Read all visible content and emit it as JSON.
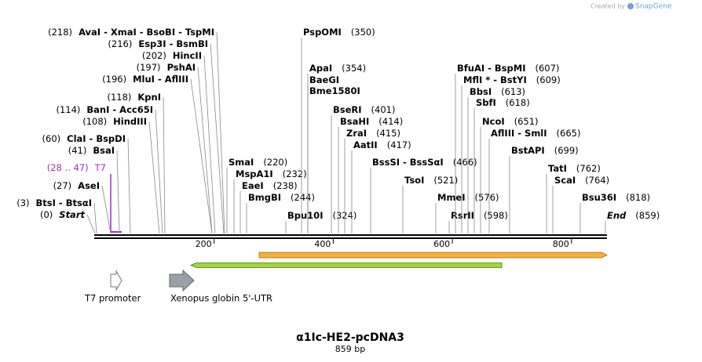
{
  "credit": "Created by",
  "logo": "SnapGene",
  "enzymes_left": [
    {
      "site": "(218)",
      "name": "AvaI - XmaI - BsoBI - TspMI"
    },
    {
      "site": "(216)",
      "name": "Esp3I - BsmBI"
    },
    {
      "site": "(202)",
      "name": "HincII"
    },
    {
      "site": "(197)",
      "name": "PshAI"
    },
    {
      "site": "(196)",
      "name": "MluI - AflIII"
    },
    {
      "site": "(118)",
      "name": "KpnI"
    },
    {
      "site": "(114)",
      "name": "BanI - Acc65I"
    },
    {
      "site": "(108)",
      "name": "HindIII"
    },
    {
      "site": "(60)",
      "name": "ClaI - BspDI"
    },
    {
      "site": "(41)",
      "name": "BsaI"
    },
    {
      "site": "(27)",
      "name": "AseI"
    },
    {
      "site": "(3)",
      "name": "BtsI - BtsαI"
    },
    {
      "site": "(0)",
      "name": "Start"
    }
  ],
  "enzymes_right": [
    {
      "name": "SmaI",
      "site": "(220)"
    },
    {
      "name": "MspA1I",
      "site": "(232)"
    },
    {
      "name": "EaeI",
      "site": "(238)"
    },
    {
      "name": "BmgBI",
      "site": "(244)"
    },
    {
      "name": "Bpu10I",
      "site": "(324)"
    },
    {
      "name": "PspOMI",
      "site": "(350)"
    },
    {
      "name": "ApaI",
      "site": "(354)"
    },
    {
      "name": "BaeGI"
    },
    {
      "name": "Bme1580I"
    },
    {
      "name": "BseRI",
      "site": "(401)"
    },
    {
      "name": "BsaHI",
      "site": "(414)"
    },
    {
      "name": "ZraI",
      "site": "(415)"
    },
    {
      "name": "AatII",
      "site": "(417)"
    },
    {
      "name": "BssSI - BssSαI",
      "site": "(466)"
    },
    {
      "name": "TsoI",
      "site": "(521)"
    },
    {
      "name": "MmeI",
      "site": "(576)"
    },
    {
      "name": "RsrII",
      "site": "(598)"
    },
    {
      "name": "BfuAI - BspMI",
      "site": "(607)"
    },
    {
      "name": "MflI * - BstYI",
      "site": "(609)"
    },
    {
      "name": "BbsI",
      "site": "(613)"
    },
    {
      "name": "SbfI",
      "site": "(618)"
    },
    {
      "name": "NcoI",
      "site": "(651)"
    },
    {
      "name": "AflIII - SmlI",
      "site": "(665)"
    },
    {
      "name": "BstAPI",
      "site": "(699)"
    },
    {
      "name": "TatI",
      "site": "(762)"
    },
    {
      "name": "ScaI",
      "site": "(764)"
    },
    {
      "name": "Bsu36I",
      "site": "(818)"
    },
    {
      "name": "End",
      "site": "(859)"
    }
  ],
  "feature_label": {
    "range": "(28 .. 47)",
    "name": "T7"
  },
  "ruler": {
    "ticks": [
      200,
      400,
      600,
      800
    ]
  },
  "features": [
    {
      "name": "T7 promoter"
    },
    {
      "name": "Xenopus globin 5'-UTR"
    }
  ],
  "footer": {
    "title": "α1Ic-HE2-pcDNA3",
    "length": "859 bp"
  }
}
